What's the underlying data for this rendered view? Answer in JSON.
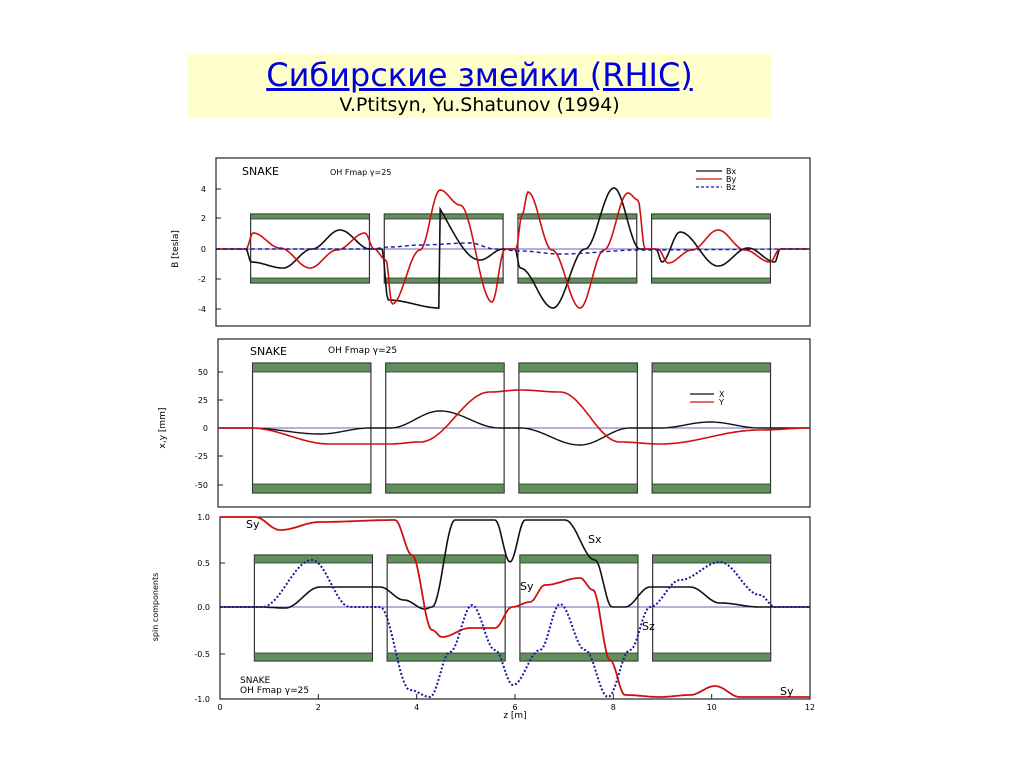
{
  "slide": {
    "title": "Сибирские змейки (RHIC)",
    "subtitle": "V.Ptitsyn, Yu.Shatunov (1994)"
  },
  "colors": {
    "black_curve": "#111111",
    "red_curve": "#d01010",
    "blue_curve": "#1a1aa0",
    "magnet_green": "#5f8f5a",
    "axis": "#222222"
  },
  "chart_data": [
    {
      "type": "line",
      "panel": "field",
      "labels": {
        "snake": "SNAKE",
        "fmap": "OH Fmap γ=25"
      },
      "ylabel": "B [tesla]",
      "ylim": [
        -5.2,
        5.2
      ],
      "yticks": [
        4,
        2,
        0,
        -2,
        -4
      ],
      "xlim": [
        0,
        12
      ],
      "legend": [
        "Bx",
        "By",
        "Bz"
      ],
      "magnets": [
        [
          0.7,
          3.1
        ],
        [
          3.4,
          5.8
        ],
        [
          6.1,
          8.5
        ],
        [
          8.8,
          11.2
        ]
      ]
    },
    {
      "type": "line",
      "panel": "orbit",
      "labels": {
        "snake": "SNAKE",
        "fmap": "OH Fmap γ=25"
      },
      "ylabel": "x,y [mm]",
      "ylim": [
        -62,
        62
      ],
      "yticks": [
        50,
        25,
        0,
        -25,
        -50
      ],
      "xlim": [
        0,
        12
      ],
      "legend": [
        "X",
        "Y"
      ],
      "magnets": [
        [
          0.7,
          3.1
        ],
        [
          3.4,
          5.8
        ],
        [
          6.1,
          8.5
        ],
        [
          8.8,
          11.2
        ]
      ]
    },
    {
      "type": "line",
      "panel": "spin",
      "labels": {
        "snake": "SNAKE",
        "fmap": "OH Fmap γ=25"
      },
      "ylabel": "spin components",
      "ylim": [
        -1.0,
        1.0
      ],
      "yticks": [
        "1.0",
        "0.5",
        "0.0",
        "-0.5",
        "-1.0"
      ],
      "xlim": [
        0,
        12
      ],
      "xticks": [
        "0",
        "2",
        "4",
        "6",
        "8",
        "10",
        "12"
      ],
      "xlabel": "z [m]",
      "annotations": [
        "Sy",
        "Sx",
        "Sy",
        "Sz",
        "Sy"
      ],
      "magnets": [
        [
          0.7,
          3.1
        ],
        [
          3.4,
          5.8
        ],
        [
          6.1,
          8.5
        ],
        [
          8.8,
          11.2
        ]
      ]
    }
  ]
}
